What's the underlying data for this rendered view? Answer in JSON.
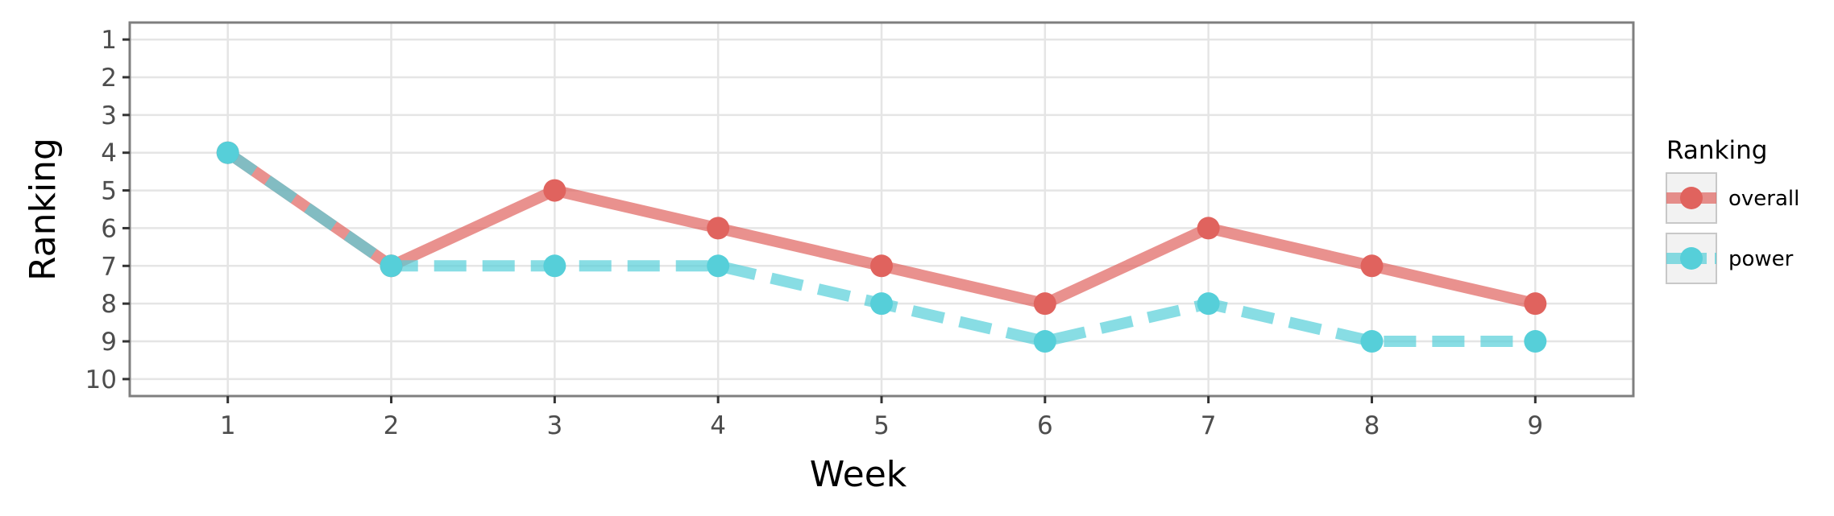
{
  "chart_data": {
    "type": "line",
    "xlabel": "Week",
    "ylabel": "Ranking",
    "x": [
      1,
      2,
      3,
      4,
      5,
      6,
      7,
      8,
      9
    ],
    "xlim": [
      0.4,
      9.6
    ],
    "ylim": [
      10.45,
      0.55
    ],
    "y_reversed": true,
    "x_ticks": [
      1,
      2,
      3,
      4,
      5,
      6,
      7,
      8,
      9
    ],
    "y_ticks": [
      1,
      2,
      3,
      4,
      5,
      6,
      7,
      8,
      9,
      10
    ],
    "grid": true,
    "legend": {
      "title": "Ranking",
      "placement": "right"
    },
    "series": [
      {
        "name": "overall",
        "values": [
          4,
          7,
          5,
          6,
          7,
          8,
          6,
          7,
          8
        ],
        "color": "#e0635e",
        "dash": "solid"
      },
      {
        "name": "power",
        "values": [
          4,
          7,
          7,
          7,
          8,
          9,
          8,
          9,
          9
        ],
        "color": "#56cfd9",
        "dash": "dashed"
      }
    ]
  }
}
